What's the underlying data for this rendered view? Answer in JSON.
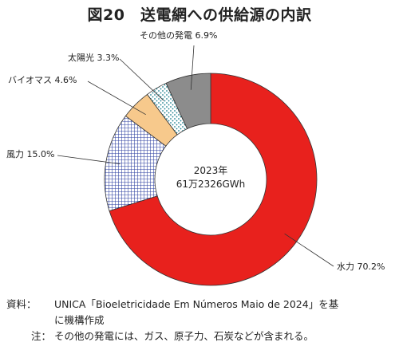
{
  "title": "図20　送電網への供給源の内訳",
  "chart_data": {
    "type": "pie",
    "donut": true,
    "center_label": [
      "2023年",
      "61万2326GWh"
    ],
    "slices": [
      {
        "name": "水力",
        "value": 70.2,
        "label": "水力 70.2%",
        "color": "#e8211d",
        "pattern": "solid"
      },
      {
        "name": "風力",
        "value": 15.0,
        "label": "風力 15.0%",
        "color": "#2b3ea0",
        "pattern": "grid"
      },
      {
        "name": "バイオマス",
        "value": 4.6,
        "label": "バイオマス 4.6%",
        "color": "#f7c98c",
        "pattern": "solid"
      },
      {
        "name": "太陽光",
        "value": 3.3,
        "label": "太陽光 3.3%",
        "color": "#1a7f8e",
        "pattern": "dots"
      },
      {
        "name": "その他の発電",
        "value": 6.9,
        "label": "その他の発電 6.9%",
        "color": "#8c8c8c",
        "pattern": "solid"
      }
    ]
  },
  "notes": {
    "source_key": "資料：",
    "source_text": "UNICA「Bioeletricidade Em Números Maio de 2024」を基",
    "source_cont": "に機構作成",
    "note_key": "注：",
    "note_text": "その他の発電には、ガス、原子力、石炭などが含まれる。"
  }
}
